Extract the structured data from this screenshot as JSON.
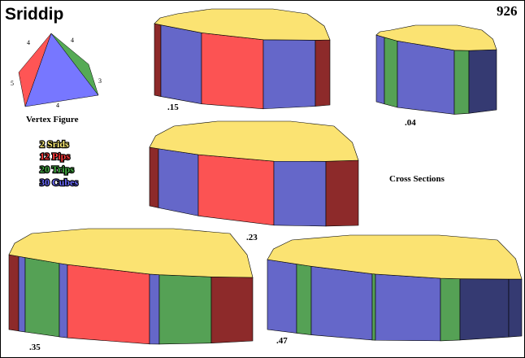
{
  "title": "Sriddip",
  "figure_number": "926",
  "vertex_figure": {
    "label": "Vertex Figure",
    "edge_labels": [
      "4",
      "4",
      "3",
      "4",
      "5"
    ],
    "colors": [
      "#ff5555",
      "#7777ff",
      "#55aa55"
    ]
  },
  "legend": [
    {
      "text": "2 Srids",
      "color": "#ffee77"
    },
    {
      "text": "12 Pips",
      "color": "#ff3b3b"
    },
    {
      "text": "20 Trips",
      "color": "#44b044"
    },
    {
      "text": "30 Cubes",
      "color": "#6b6bff"
    }
  ],
  "cross_sections_label": "Cross Sections",
  "colors": {
    "top": "#fbe372",
    "srid": "#fbe372",
    "pip": "#fc5353",
    "trip": "#55a155",
    "cube": "#6567c9",
    "cube_dark": "#353a72",
    "pip_dark": "#8d2a2a",
    "outline": "#000000"
  },
  "sections": [
    {
      "label": ".15",
      "faces": [
        "pip",
        "cube",
        "pip",
        "cube",
        "pip_dark"
      ]
    },
    {
      "label": ".04",
      "faces": [
        "cube",
        "trip",
        "cube",
        "trip",
        "cube_dark"
      ]
    },
    {
      "label": ".23",
      "faces": [
        "pip",
        "cube",
        "pip",
        "cube",
        "pip_dark"
      ]
    },
    {
      "label": ".35",
      "faces": [
        "pip",
        "cube",
        "trip",
        "cube",
        "pip",
        "cube",
        "trip",
        "pip_dark"
      ]
    },
    {
      "label": ".47",
      "faces": [
        "cube",
        "trip",
        "cube",
        "trip",
        "cube",
        "trip",
        "cube_dark"
      ]
    }
  ]
}
